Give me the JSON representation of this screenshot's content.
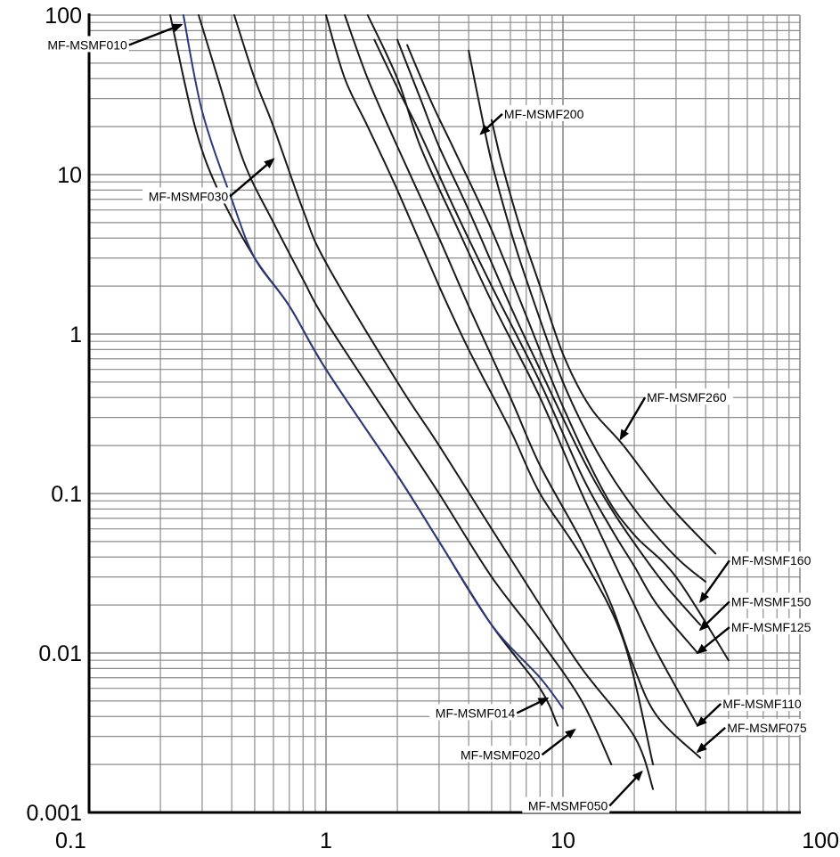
{
  "chart_data": {
    "type": "line",
    "title": "",
    "xlabel": "",
    "ylabel": "",
    "x_scale": "log",
    "y_scale": "log",
    "xlim": [
      0.1,
      100
    ],
    "ylim": [
      0.001,
      100
    ],
    "grid": true,
    "x_ticks": [
      "0.1",
      "1",
      "10",
      "100"
    ],
    "y_ticks": [
      "0.001",
      "0.01",
      "0.1",
      "1",
      "10",
      "100"
    ],
    "colors": {
      "curve": "#1a1a1a",
      "highlight": "#2b3a7a",
      "grid": "#8c8c8c",
      "axis": "#000000"
    },
    "series": [
      {
        "name": "MF-MSMF010",
        "points": [
          [
            0.22,
            100
          ],
          [
            0.28,
            20
          ],
          [
            0.35,
            8
          ],
          [
            0.5,
            3
          ],
          [
            0.7,
            1.5
          ],
          [
            1,
            0.6
          ],
          [
            2,
            0.13
          ],
          [
            3,
            0.05
          ],
          [
            5,
            0.015
          ],
          [
            8,
            0.006
          ],
          [
            9.5,
            0.0035
          ]
        ]
      },
      {
        "name": "MF-MSMF014",
        "highlight": true,
        "points": [
          [
            0.25,
            100
          ],
          [
            0.3,
            25
          ],
          [
            0.4,
            7
          ],
          [
            0.5,
            3
          ],
          [
            0.7,
            1.5
          ],
          [
            1,
            0.6
          ],
          [
            2,
            0.13
          ],
          [
            3,
            0.05
          ],
          [
            5,
            0.015
          ],
          [
            8,
            0.007
          ],
          [
            10,
            0.0045
          ]
        ]
      },
      {
        "name": "MF-MSMF020",
        "points": [
          [
            0.29,
            100
          ],
          [
            0.35,
            40
          ],
          [
            0.45,
            12
          ],
          [
            0.6,
            5
          ],
          [
            0.8,
            2.2
          ],
          [
            1,
            1.2
          ],
          [
            2,
            0.25
          ],
          [
            3,
            0.1
          ],
          [
            5,
            0.03
          ],
          [
            8,
            0.012
          ],
          [
            12,
            0.005
          ],
          [
            16,
            0.002
          ]
        ]
      },
      {
        "name": "MF-MSMF030",
        "points": [
          [
            0.41,
            100
          ],
          [
            0.5,
            40
          ],
          [
            0.6,
            20
          ],
          [
            0.8,
            6
          ],
          [
            1,
            2.8
          ],
          [
            2,
            0.5
          ],
          [
            3,
            0.2
          ],
          [
            5,
            0.06
          ],
          [
            8,
            0.02
          ],
          [
            12,
            0.008
          ],
          [
            20,
            0.003
          ],
          [
            24,
            0.0014
          ]
        ]
      },
      {
        "name": "MF-MSMF050",
        "points": [
          [
            1,
            100
          ],
          [
            1.2,
            40
          ],
          [
            1.5,
            20
          ],
          [
            2,
            8
          ],
          [
            3,
            2
          ],
          [
            4,
            0.8
          ],
          [
            6,
            0.25
          ],
          [
            8,
            0.1
          ],
          [
            12,
            0.04
          ],
          [
            18,
            0.012
          ],
          [
            24,
            0.002
          ]
        ]
      },
      {
        "name": "MF-MSMF075",
        "points": [
          [
            1.2,
            100
          ],
          [
            1.5,
            40
          ],
          [
            2,
            15
          ],
          [
            3,
            4
          ],
          [
            4,
            1.5
          ],
          [
            6,
            0.4
          ],
          [
            8,
            0.15
          ],
          [
            12,
            0.05
          ],
          [
            16,
            0.02
          ],
          [
            20,
            0.008
          ],
          [
            25,
            0.004
          ],
          [
            38,
            0.0022
          ]
        ]
      },
      {
        "name": "MF-MSMF110",
        "points": [
          [
            1.5,
            100
          ],
          [
            2,
            40
          ],
          [
            2.5,
            15
          ],
          [
            3.5,
            5
          ],
          [
            5,
            1.6
          ],
          [
            8,
            0.4
          ],
          [
            12,
            0.1
          ],
          [
            16,
            0.04
          ],
          [
            20,
            0.02
          ],
          [
            25,
            0.01
          ],
          [
            37,
            0.0035
          ]
        ]
      },
      {
        "name": "MF-MSMF125",
        "points": [
          [
            1.6,
            70
          ],
          [
            2,
            35
          ],
          [
            2.5,
            18
          ],
          [
            3.5,
            6
          ],
          [
            5,
            2
          ],
          [
            8,
            0.5
          ],
          [
            12,
            0.13
          ],
          [
            16,
            0.06
          ],
          [
            20,
            0.035
          ],
          [
            25,
            0.02
          ],
          [
            37,
            0.01
          ]
        ]
      },
      {
        "name": "MF-MSMF150",
        "points": [
          [
            2,
            70
          ],
          [
            2.5,
            30
          ],
          [
            3,
            15
          ],
          [
            4,
            6
          ],
          [
            6,
            1.5
          ],
          [
            8,
            0.6
          ],
          [
            12,
            0.17
          ],
          [
            16,
            0.08
          ],
          [
            22,
            0.04
          ],
          [
            28,
            0.025
          ],
          [
            38,
            0.015
          ]
        ]
      },
      {
        "name": "MF-MSMF160",
        "points": [
          [
            2.2,
            65
          ],
          [
            2.8,
            28
          ],
          [
            3.5,
            14
          ],
          [
            5,
            4.5
          ],
          [
            7,
            1.3
          ],
          [
            10,
            0.35
          ],
          [
            15,
            0.1
          ],
          [
            20,
            0.055
          ],
          [
            30,
            0.03
          ],
          [
            50,
            0.009
          ]
        ]
      },
      {
        "name": "MF-MSMF200",
        "points": [
          [
            4,
            60
          ],
          [
            4.5,
            25
          ],
          [
            5,
            12
          ],
          [
            6,
            4.5
          ],
          [
            7,
            2.2
          ],
          [
            10,
            0.5
          ],
          [
            14,
            0.18
          ],
          [
            20,
            0.08
          ],
          [
            30,
            0.04
          ],
          [
            40,
            0.028
          ]
        ]
      },
      {
        "name": "MF-MSMF260",
        "points": [
          [
            5,
            22
          ],
          [
            5.5,
            12
          ],
          [
            6.5,
            5
          ],
          [
            8,
            2
          ],
          [
            10,
            0.75
          ],
          [
            13,
            0.35
          ],
          [
            18,
            0.2
          ],
          [
            28,
            0.085
          ],
          [
            44,
            0.042
          ]
        ]
      }
    ],
    "annotations": [
      {
        "text": "MF-MSMF010",
        "series": "MF-MSMF010",
        "target": [
          0.245,
          87
        ],
        "at": [
          0.15,
          65
        ],
        "label_side": "left"
      },
      {
        "text": "MF-MSMF030",
        "series": "MF-MSMF030",
        "target": [
          0.6,
          12.5
        ],
        "at": [
          0.4,
          7.3
        ],
        "label_side": "left"
      },
      {
        "text": "MF-MSMF200",
        "series": "MF-MSMF200",
        "target": [
          4.5,
          18
        ],
        "at": [
          5.5,
          24
        ],
        "label_side": "right"
      },
      {
        "text": "MF-MSMF260",
        "series": "MF-MSMF260",
        "target": [
          17.5,
          0.22
        ],
        "at": [
          22,
          0.4
        ],
        "label_side": "right"
      },
      {
        "text": "MF-MSMF160",
        "series": "MF-MSMF160",
        "target": [
          38,
          0.021
        ],
        "at": [
          50,
          0.038
        ],
        "label_side": "right"
      },
      {
        "text": "MF-MSMF150",
        "series": "MF-MSMF150",
        "target": [
          38,
          0.014
        ],
        "at": [
          50,
          0.021
        ],
        "label_side": "right"
      },
      {
        "text": "MF-MSMF125",
        "series": "MF-MSMF125",
        "target": [
          37,
          0.01
        ],
        "at": [
          50,
          0.0145
        ],
        "label_side": "right"
      },
      {
        "text": "MF-MSMF110",
        "series": "MF-MSMF110",
        "target": [
          37,
          0.0035
        ],
        "at": [
          46,
          0.0048
        ],
        "label_side": "right"
      },
      {
        "text": "MF-MSMF075",
        "series": "MF-MSMF075",
        "target": [
          37,
          0.0024
        ],
        "at": [
          48,
          0.0034
        ],
        "label_side": "right"
      },
      {
        "text": "MF-MSMF014",
        "series": "MF-MSMF014",
        "target": [
          8.6,
          0.0052
        ],
        "at": [
          6.5,
          0.0042
        ],
        "label_side": "left"
      },
      {
        "text": "MF-MSMF020",
        "series": "MF-MSMF020",
        "target": [
          11.2,
          0.0033
        ],
        "at": [
          8.3,
          0.0023
        ],
        "label_side": "left"
      },
      {
        "text": "MF-MSMF050",
        "series": "MF-MSMF050",
        "target": [
          21.5,
          0.0018
        ],
        "at": [
          16,
          0.0011
        ],
        "label_side": "left"
      }
    ]
  }
}
